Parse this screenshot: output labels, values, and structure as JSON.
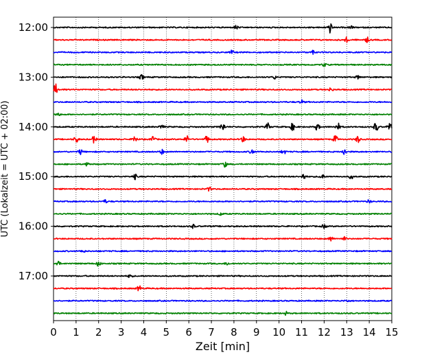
{
  "chart_data": {
    "type": "line",
    "title": "",
    "xlabel": "Zeit  [min]",
    "ylabel": "UTC (Lokalzeit = UTC + 02:00)",
    "xlim": [
      0,
      15
    ],
    "x_ticks": [
      0,
      1,
      2,
      3,
      4,
      5,
      6,
      7,
      8,
      9,
      10,
      11,
      12,
      13,
      14,
      15
    ],
    "x_tick_labels": [
      "0",
      "1",
      "2",
      "3",
      "4",
      "5",
      "6",
      "7",
      "8",
      "9",
      "10",
      "11",
      "12",
      "13",
      "14",
      "15"
    ],
    "y_tick_labels": [
      "12:00",
      "13:00",
      "14:00",
      "15:00",
      "16:00",
      "17:00"
    ],
    "grid": "vertical dotted",
    "trace_colors": [
      "#000000",
      "#ff0000",
      "#0000ff",
      "#008000"
    ],
    "traces": [
      {
        "start": "12:00",
        "bursts": [
          {
            "t": 8.1,
            "a": 0.35
          },
          {
            "t": 12.25,
            "a": 0.9
          },
          {
            "t": 13.2,
            "a": 0.25
          }
        ]
      },
      {
        "start": "12:15",
        "bursts": [
          {
            "t": 13.0,
            "a": 0.4
          },
          {
            "t": 13.9,
            "a": 0.4
          }
        ]
      },
      {
        "start": "12:30",
        "bursts": [
          {
            "t": 7.9,
            "a": 0.3
          },
          {
            "t": 11.5,
            "a": 0.25
          }
        ]
      },
      {
        "start": "12:45",
        "bursts": [
          {
            "t": 12.0,
            "a": 0.3
          }
        ]
      },
      {
        "start": "13:00",
        "bursts": [
          {
            "t": 3.9,
            "a": 0.4
          },
          {
            "t": 9.8,
            "a": 0.3
          },
          {
            "t": 13.5,
            "a": 0.3
          }
        ]
      },
      {
        "start": "13:15",
        "bursts": [
          {
            "t": 0.1,
            "a": 0.9
          },
          {
            "t": 12.3,
            "a": 0.35
          }
        ]
      },
      {
        "start": "13:30",
        "bursts": [
          {
            "t": 11.0,
            "a": 0.3
          }
        ]
      },
      {
        "start": "13:45",
        "bursts": [
          {
            "t": 0.2,
            "a": 0.3
          }
        ]
      },
      {
        "start": "14:00",
        "bursts": [
          {
            "t": 4.8,
            "a": 0.4
          },
          {
            "t": 7.5,
            "a": 0.75
          },
          {
            "t": 9.5,
            "a": 0.6
          },
          {
            "t": 10.6,
            "a": 0.6
          },
          {
            "t": 11.7,
            "a": 0.6
          },
          {
            "t": 12.6,
            "a": 0.7
          },
          {
            "t": 14.3,
            "a": 0.85
          },
          {
            "t": 14.9,
            "a": 0.7
          }
        ]
      },
      {
        "start": "14:15",
        "bursts": [
          {
            "t": 1.0,
            "a": 0.6
          },
          {
            "t": 1.8,
            "a": 0.6
          },
          {
            "t": 3.6,
            "a": 0.6
          },
          {
            "t": 4.4,
            "a": 0.6
          },
          {
            "t": 5.9,
            "a": 0.6
          },
          {
            "t": 6.8,
            "a": 0.6
          },
          {
            "t": 8.4,
            "a": 0.5
          },
          {
            "t": 12.5,
            "a": 0.7
          },
          {
            "t": 13.5,
            "a": 0.6
          }
        ]
      },
      {
        "start": "14:30",
        "bursts": [
          {
            "t": 1.2,
            "a": 0.45
          },
          {
            "t": 4.8,
            "a": 0.4
          },
          {
            "t": 8.8,
            "a": 0.5
          },
          {
            "t": 10.2,
            "a": 0.45
          },
          {
            "t": 12.9,
            "a": 0.5
          }
        ]
      },
      {
        "start": "14:45",
        "bursts": [
          {
            "t": 1.5,
            "a": 0.3
          },
          {
            "t": 7.6,
            "a": 0.45
          }
        ]
      },
      {
        "start": "15:00",
        "bursts": [
          {
            "t": 3.6,
            "a": 0.45
          },
          {
            "t": 11.1,
            "a": 0.5
          },
          {
            "t": 11.9,
            "a": 0.5
          },
          {
            "t": 13.2,
            "a": 0.35
          }
        ]
      },
      {
        "start": "15:15",
        "bursts": [
          {
            "t": 6.9,
            "a": 0.3
          }
        ]
      },
      {
        "start": "15:30",
        "bursts": [
          {
            "t": 2.3,
            "a": 0.25
          },
          {
            "t": 14.0,
            "a": 0.25
          }
        ]
      },
      {
        "start": "15:45",
        "bursts": [
          {
            "t": 7.4,
            "a": 0.25
          }
        ]
      },
      {
        "start": "16:00",
        "bursts": [
          {
            "t": 6.2,
            "a": 0.3
          },
          {
            "t": 12.0,
            "a": 0.35
          }
        ]
      },
      {
        "start": "16:15",
        "bursts": [
          {
            "t": 12.3,
            "a": 0.45
          },
          {
            "t": 12.9,
            "a": 0.3
          }
        ]
      },
      {
        "start": "16:30",
        "bursts": [
          {
            "t": 1.3,
            "a": 0.25
          }
        ]
      },
      {
        "start": "16:45",
        "bursts": [
          {
            "t": 0.2,
            "a": 0.4
          },
          {
            "t": 2.0,
            "a": 0.5
          },
          {
            "t": 7.7,
            "a": 0.25
          }
        ]
      },
      {
        "start": "17:00",
        "bursts": [
          {
            "t": 3.4,
            "a": 0.35
          }
        ]
      },
      {
        "start": "17:15",
        "bursts": [
          {
            "t": 3.8,
            "a": 0.45
          }
        ]
      },
      {
        "start": "17:30",
        "bursts": [
          {
            "t": 13.0,
            "a": 0.2
          }
        ]
      },
      {
        "start": "17:45",
        "bursts": [
          {
            "t": 10.3,
            "a": 0.25
          }
        ]
      }
    ]
  }
}
